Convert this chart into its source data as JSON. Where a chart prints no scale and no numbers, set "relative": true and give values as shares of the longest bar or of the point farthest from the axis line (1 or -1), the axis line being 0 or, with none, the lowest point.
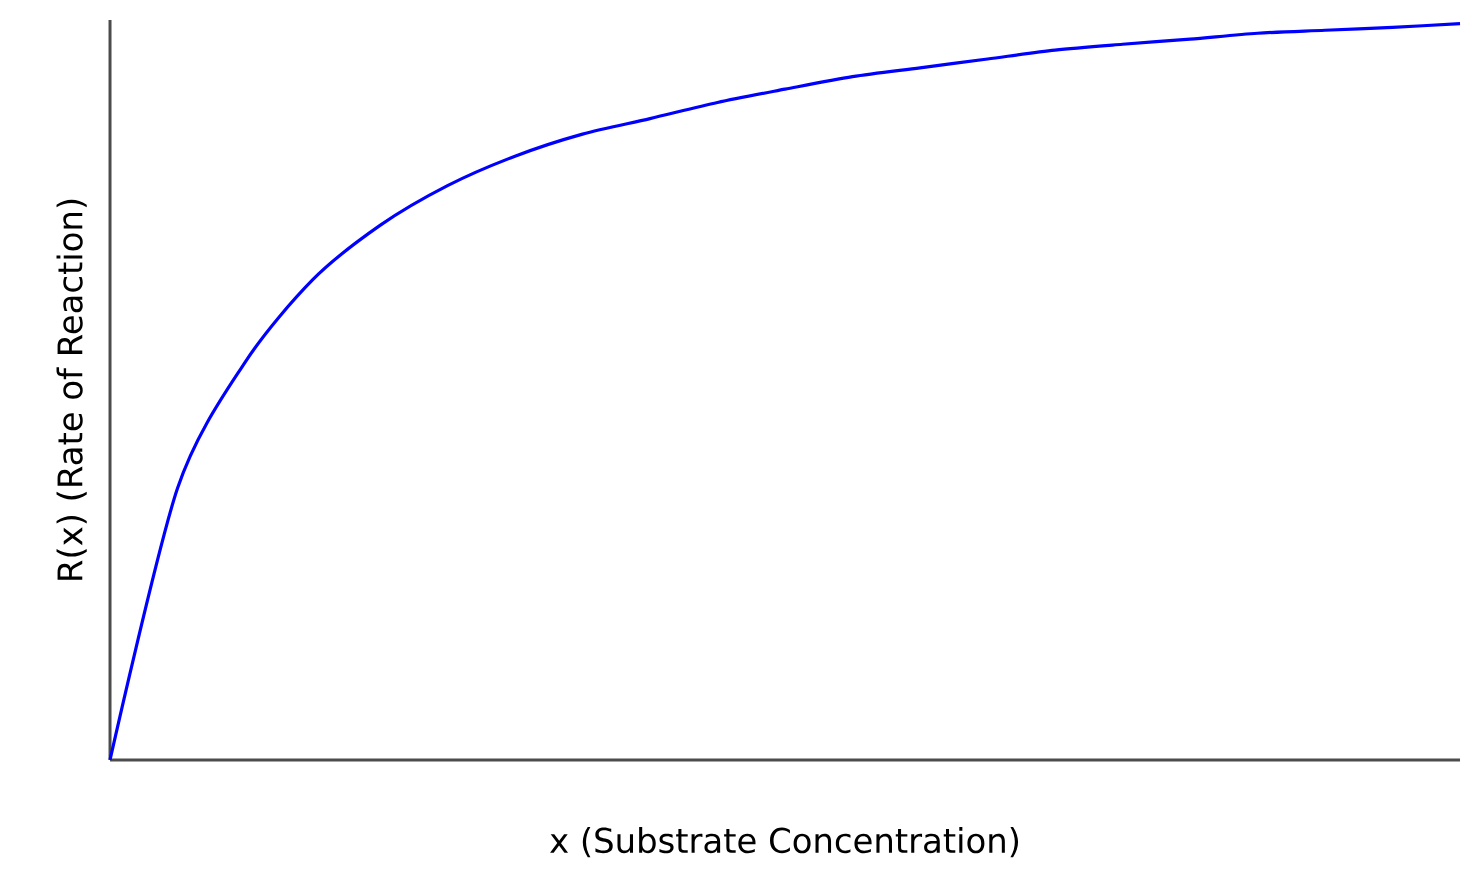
{
  "chart_data": {
    "type": "line",
    "xlabel": "x (Substrate Concentration)",
    "ylabel": "R(x) (Rate of Reaction)",
    "relative": true,
    "categories": [
      null,
      null,
      null,
      null,
      null,
      null,
      null,
      null,
      null,
      null,
      null,
      null,
      null,
      null,
      null,
      null,
      null,
      null,
      null,
      null,
      null
    ],
    "series": [
      {
        "color": "#0000ff",
        "values": [
          0,
          0.369,
          0.54,
          0.652,
          0.726,
          0.78,
          0.82,
          0.85,
          0.871,
          0.893,
          0.911,
          0.928,
          0.94,
          0.952,
          0.964,
          0.972,
          0.979,
          0.987,
          0.991,
          0.995,
          1.0
        ]
      }
    ]
  }
}
